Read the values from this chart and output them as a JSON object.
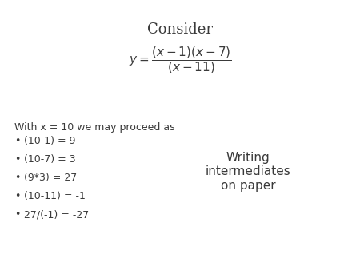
{
  "title": "Consider",
  "title_fontsize": 13,
  "formula_fontsize": 11,
  "intro_text": "With x = 10 we may proceed as",
  "intro_fontsize": 9,
  "bullet_items": [
    "(10-1) = 9",
    "(10-7) = 3",
    "(9*3) = 27",
    "(10-11) = -1",
    "27/(-1) = -27"
  ],
  "bullet_fontsize": 9,
  "side_text": "Writing\nintermediates\non paper",
  "side_fontsize": 11,
  "bg_color": "#ffffff",
  "text_color": "#3a3a3a"
}
